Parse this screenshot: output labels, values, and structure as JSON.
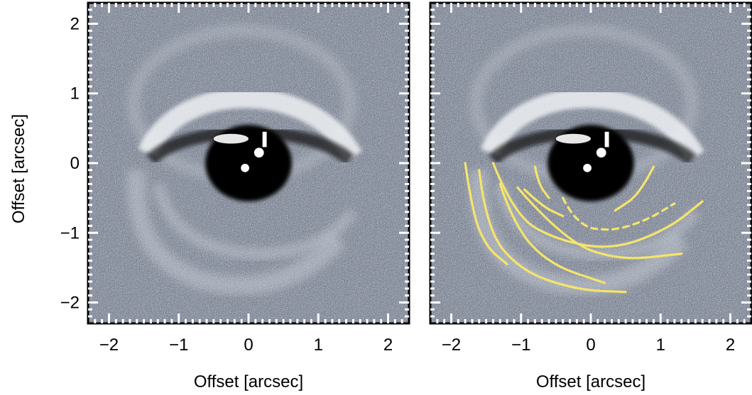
{
  "chart_data": [
    {
      "type": "image",
      "panel": "left",
      "xlabel": "Offset [arcsec]",
      "ylabel": "Offset [arcsec]",
      "xlim": [
        -2.3,
        2.3
      ],
      "ylim": [
        -2.3,
        2.3
      ],
      "xticks": [
        -2,
        -1,
        0,
        1,
        2
      ],
      "yticks": [
        -2,
        -1,
        0,
        1,
        2
      ],
      "xtick_labels": [
        "−2",
        "−1",
        "0",
        "1",
        "2"
      ],
      "ytick_labels": [
        "−2",
        "−1",
        "0",
        "1",
        "2"
      ],
      "colormap": "bone",
      "overlays": []
    },
    {
      "type": "image",
      "panel": "right",
      "xlabel": "Offset [arcsec]",
      "ylabel": "",
      "xlim": [
        -2.3,
        2.3
      ],
      "ylim": [
        -2.3,
        2.3
      ],
      "xticks": [
        -2,
        -1,
        0,
        1,
        2
      ],
      "yticks": [
        -2,
        -1,
        0,
        1,
        2
      ],
      "xtick_labels": [
        "−2",
        "−1",
        "0",
        "1",
        "2"
      ],
      "ytick_labels": [],
      "colormap": "bone",
      "overlay_color": "#f5e46a",
      "overlays": [
        {
          "style": "solid",
          "points": [
            [
              -1.4,
              0.0
            ],
            [
              -1.1,
              -0.75
            ],
            [
              -0.5,
              -1.1
            ],
            [
              0.3,
              -1.25
            ],
            [
              1.1,
              -0.95
            ],
            [
              1.6,
              -0.55
            ]
          ]
        },
        {
          "style": "solid",
          "points": [
            [
              -1.6,
              -0.1
            ],
            [
              -1.5,
              -0.95
            ],
            [
              -1.0,
              -1.55
            ],
            [
              -0.2,
              -1.82
            ],
            [
              0.5,
              -1.85
            ]
          ]
        },
        {
          "style": "solid",
          "points": [
            [
              -1.8,
              0.0
            ],
            [
              -1.7,
              -0.7
            ],
            [
              -1.5,
              -1.2
            ],
            [
              -1.2,
              -1.45
            ]
          ]
        },
        {
          "style": "solid",
          "points": [
            [
              -1.3,
              -0.3
            ],
            [
              -1.1,
              -0.9
            ],
            [
              -0.6,
              -1.45
            ],
            [
              0.2,
              -1.72
            ]
          ]
        },
        {
          "style": "solid",
          "points": [
            [
              -1.05,
              -0.35
            ],
            [
              -0.4,
              -1.1
            ],
            [
              0.4,
              -1.4
            ],
            [
              1.3,
              -1.3
            ]
          ]
        },
        {
          "style": "solid",
          "points": [
            [
              -0.95,
              -0.38
            ],
            [
              -0.7,
              -0.62
            ],
            [
              -0.4,
              -0.76
            ]
          ]
        },
        {
          "style": "solid",
          "points": [
            [
              0.9,
              -0.05
            ],
            [
              0.7,
              -0.45
            ],
            [
              0.35,
              -0.68
            ]
          ]
        },
        {
          "style": "solid",
          "points": [
            [
              -0.8,
              -0.05
            ],
            [
              -0.75,
              -0.3
            ],
            [
              -0.6,
              -0.5
            ]
          ]
        },
        {
          "style": "dashed",
          "points": [
            [
              -0.4,
              -0.5
            ],
            [
              -0.2,
              -0.9
            ],
            [
              0.3,
              -0.98
            ],
            [
              0.8,
              -0.82
            ],
            [
              1.2,
              -0.58
            ]
          ]
        }
      ]
    }
  ]
}
